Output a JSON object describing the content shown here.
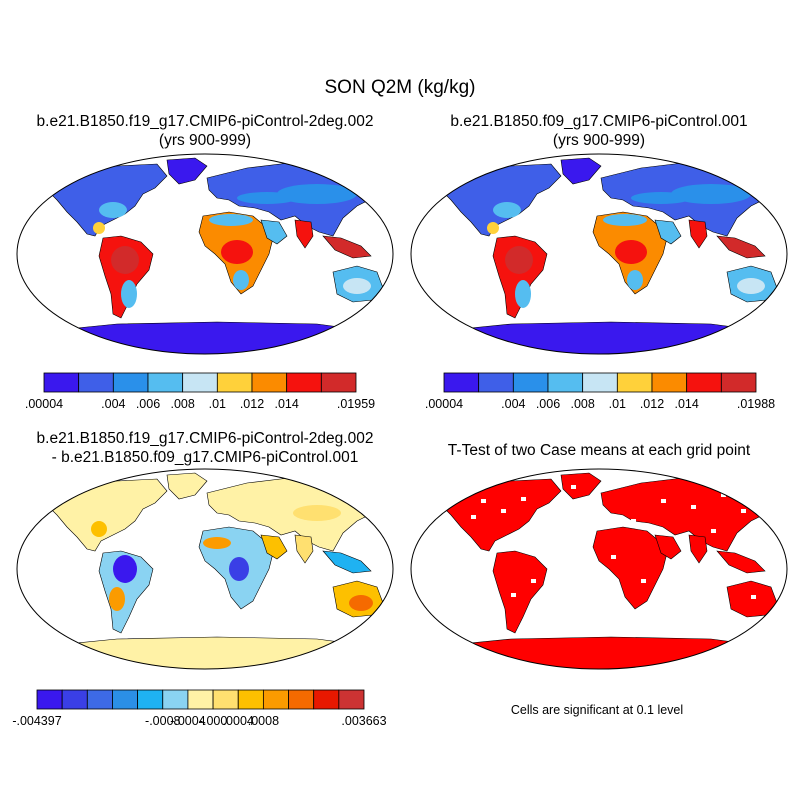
{
  "figure": {
    "title": "SON Q2M (kg/kg)"
  },
  "panels": {
    "p1": {
      "title_line1": "b.e21.B1850.f19_g17.CMIP6-piControl-2deg.002",
      "title_line2": "(yrs 900-999)"
    },
    "p2": {
      "title_line1": "b.e21.B1850.f09_g17.CMIP6-piControl.001",
      "title_line2": "(yrs 900-999)"
    },
    "p3": {
      "title_line1": "b.e21.B1850.f19_g17.CMIP6-piControl-2deg.002",
      "title_line2": "- b.e21.B1850.f09_g17.CMIP6-piControl.001"
    },
    "p4": {
      "title_line1": "T-Test of two Case means at each grid point",
      "note": "Cells are significant at 0.1 level"
    }
  },
  "colorbars": {
    "cb1": {
      "colors": [
        "#3a18ee",
        "#3f5fe8",
        "#2a90ea",
        "#55bdf0",
        "#c7e5f4",
        "#ffd13a",
        "#fb8b00",
        "#f5120e",
        "#d22a2a"
      ],
      "labels": [
        ".00004",
        ".004",
        ".006",
        ".008",
        ".01",
        ".012",
        ".014",
        ".01959"
      ]
    },
    "cb2": {
      "colors": [
        "#3a18ee",
        "#3f5fe8",
        "#2a90ea",
        "#55bdf0",
        "#c7e5f4",
        "#ffd13a",
        "#fb8b00",
        "#f5120e",
        "#d22a2a"
      ],
      "labels": [
        ".00004",
        ".004",
        ".006",
        ".008",
        ".01",
        ".012",
        ".014",
        ".01988"
      ]
    },
    "cb3": {
      "colors": [
        "#3a18ee",
        "#3a3fe6",
        "#3d6ae6",
        "#2b8fe6",
        "#1fb2f2",
        "#8ad3f2",
        "#fff2a6",
        "#ffe070",
        "#fdc000",
        "#fb9b00",
        "#f56a00",
        "#e81800",
        "#cc3333"
      ],
      "labels": [
        "-.004397",
        "-.0008",
        "-.0004",
        "-.000",
        ".0004",
        ".0008",
        ".003663"
      ]
    }
  },
  "chart_data": [
    {
      "type": "heatmap",
      "title": "b.e21.B1850.f19_g17.CMIP6-piControl-2deg.002 (yrs 900-999)",
      "variable": "Q2M",
      "units": "kg/kg",
      "season": "SON",
      "projection": "global map",
      "colorbar_labels": [
        ".00004",
        ".004",
        ".006",
        ".008",
        ".01",
        ".012",
        ".014",
        ".01959"
      ],
      "range": [
        4e-05,
        0.01959
      ]
    },
    {
      "type": "heatmap",
      "title": "b.e21.B1850.f09_g17.CMIP6-piControl.001 (yrs 900-999)",
      "variable": "Q2M",
      "units": "kg/kg",
      "season": "SON",
      "projection": "global map",
      "colorbar_labels": [
        ".00004",
        ".004",
        ".006",
        ".008",
        ".01",
        ".012",
        ".014",
        ".01988"
      ],
      "range": [
        4e-05,
        0.01988
      ]
    },
    {
      "type": "heatmap",
      "title": "b.e21.B1850.f19_g17.CMIP6-piControl-2deg.002 - b.e21.B1850.f09_g17.CMIP6-piControl.001",
      "variable": "Q2M difference",
      "units": "kg/kg",
      "projection": "global map",
      "colorbar_labels": [
        "-.004397",
        "-.0008",
        "-.0004",
        "-.000",
        ".0004",
        ".0008",
        ".003663"
      ],
      "range": [
        -0.004397,
        0.003663
      ]
    },
    {
      "type": "heatmap",
      "title": "T-Test of two Case means at each grid point",
      "annotation": "Cells are significant at 0.1 level",
      "projection": "global map",
      "significant_color": "#ff0000"
    }
  ]
}
